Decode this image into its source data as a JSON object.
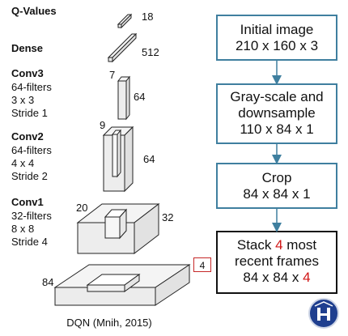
{
  "layers": {
    "qvalues": {
      "title": "Q-Values",
      "size": "18"
    },
    "dense": {
      "title": "Dense",
      "size": "512"
    },
    "conv3": {
      "title": "Conv3",
      "filters": "64-filters",
      "kernel": "3 x 3",
      "stride": "Stride 1",
      "width": "7",
      "depth": "64"
    },
    "conv2": {
      "title": "Conv2",
      "filters": "64-filters",
      "kernel": "4 x 4",
      "stride": "Stride 2",
      "width": "9",
      "depth": "64"
    },
    "conv1": {
      "title": "Conv1",
      "filters": "32-filters",
      "kernel": "8 x 8",
      "stride": "Stride 4",
      "width": "20",
      "depth": "32"
    },
    "input": {
      "width": "84",
      "channels": "4"
    }
  },
  "caption": "DQN (Mnih, 2015)",
  "pipeline": [
    {
      "line1": "Initial image",
      "line2": "210 x 160 x 3"
    },
    {
      "line1": "Gray-scale and",
      "line2": "downsample",
      "line3": "110 x 84 x 1"
    },
    {
      "line1": "Crop",
      "line2": "84 x 84 x 1"
    },
    {
      "line1a": "Stack ",
      "line1b": "4",
      "line1c": " most",
      "line2": "recent frames",
      "line3a": "84 x 84 x ",
      "line3b": "4"
    }
  ],
  "colors": {
    "flow_border": "#3f7f9f",
    "accent_red": "#d01515",
    "logo_blue": "#1f3f8f"
  },
  "logo": {
    "icon": "university-crest-icon"
  }
}
